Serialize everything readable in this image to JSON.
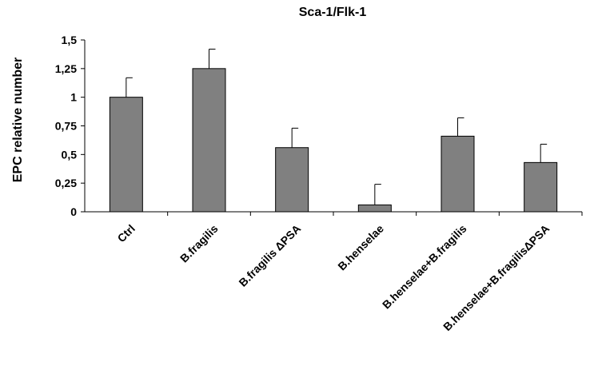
{
  "chart_data": {
    "type": "bar",
    "title": "Sca-1/Flk-1",
    "ylabel": "EPC relative number",
    "xlabel": "",
    "ylim": [
      0,
      1.5
    ],
    "yticks": [
      {
        "value": 0,
        "label": "0"
      },
      {
        "value": 0.25,
        "label": "0,25"
      },
      {
        "value": 0.5,
        "label": "0,5"
      },
      {
        "value": 0.75,
        "label": "0,75"
      },
      {
        "value": 1,
        "label": "1"
      },
      {
        "value": 1.25,
        "label": "1,25"
      },
      {
        "value": 1.5,
        "label": "1,5"
      }
    ],
    "categories": [
      "Ctrl",
      "B.fragilis",
      "B.fragilis ΔPSA",
      "B.henselae",
      "B.henselae+B.fragilis",
      "B.henselae+B.fragilisΔPSA"
    ],
    "values": [
      1.0,
      1.25,
      0.56,
      0.06,
      0.66,
      0.43
    ],
    "errors": [
      0.17,
      0.17,
      0.17,
      0.18,
      0.16,
      0.16
    ],
    "colors": {
      "bar": "#808080",
      "outline": "#000000"
    },
    "grid": false,
    "legend": "none"
  }
}
